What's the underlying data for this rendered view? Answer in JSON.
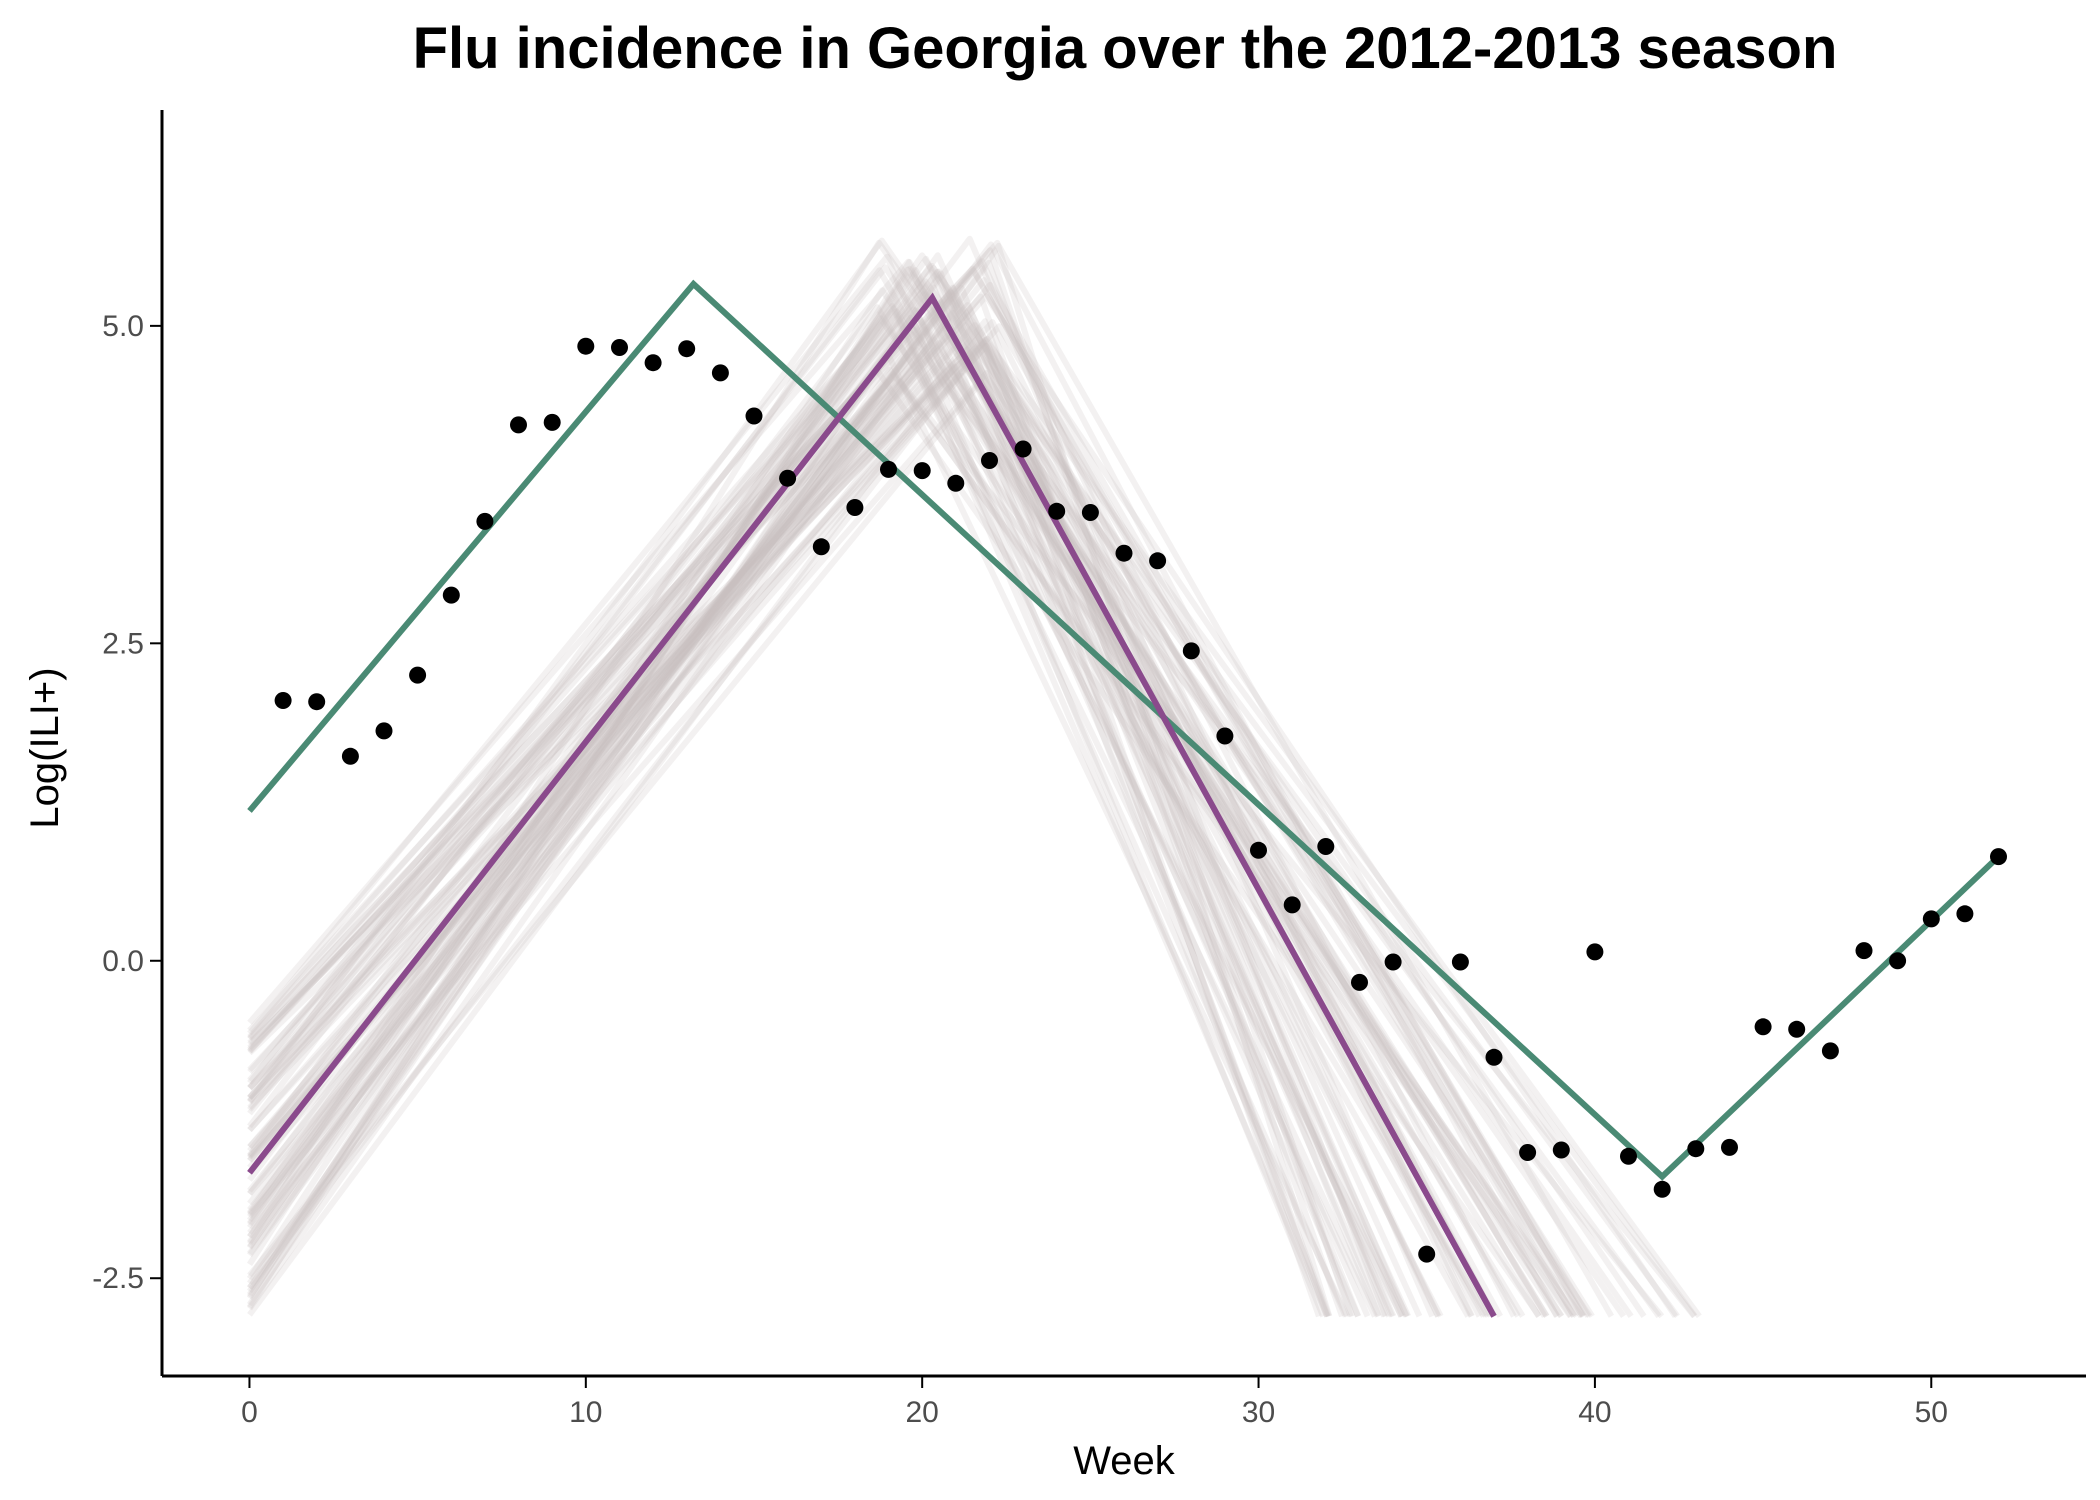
{
  "chart_data": {
    "type": "scatter",
    "title": "Flu incidence in Georgia over the 2012-2013 season",
    "xlabel": "Week",
    "ylabel": "Log(ILI+)",
    "xlim": [
      -2.6,
      54.6
    ],
    "ylim": [
      -3.27,
      6.7
    ],
    "x_ticks": [
      0,
      10,
      20,
      30,
      40,
      50
    ],
    "x_tick_labels": [
      "0",
      "10",
      "20",
      "30",
      "40",
      "50"
    ],
    "y_ticks": [
      -2.5,
      0,
      2.5,
      5
    ],
    "y_tick_labels": [
      "-2.5",
      "0.0",
      "2.5",
      "5.0"
    ],
    "grid": false,
    "legend": "none",
    "points": {
      "color": "#000000",
      "x": [
        1,
        2,
        3,
        4,
        5,
        6,
        7,
        8,
        9,
        10,
        11,
        12,
        13,
        14,
        15,
        16,
        17,
        18,
        19,
        20,
        21,
        22,
        23,
        24,
        25,
        26,
        27,
        28,
        29,
        30,
        31,
        32,
        33,
        34,
        35,
        36,
        37,
        38,
        39,
        40,
        41,
        42,
        43,
        44,
        45,
        46,
        47,
        48,
        49,
        50,
        51,
        52
      ],
      "y": [
        2.05,
        2.04,
        1.61,
        1.81,
        2.25,
        2.88,
        3.46,
        4.22,
        4.24,
        4.84,
        4.83,
        4.71,
        4.82,
        4.63,
        4.29,
        3.8,
        3.26,
        3.57,
        3.87,
        3.86,
        3.76,
        3.94,
        4.03,
        3.54,
        3.53,
        3.21,
        3.15,
        2.44,
        1.77,
        0.87,
        0.44,
        0.9,
        -0.17,
        -0.01,
        -2.31,
        -0.01,
        -0.76,
        -1.51,
        -1.49,
        0.07,
        -1.54,
        -1.8,
        -1.48,
        -1.47,
        -0.52,
        -0.54,
        -0.71,
        0.08,
        0.0,
        0.33,
        0.37,
        0.82
      ]
    },
    "lines": [
      {
        "color": "#4a8a74",
        "x": [
          0,
          13.2,
          42,
          52
        ],
        "y": [
          1.18,
          5.33,
          -1.7,
          0.82
        ]
      },
      {
        "color": "#8a4a8c",
        "x": [
          0,
          20.3,
          37
        ],
        "y": [
          -1.67,
          5.22,
          -2.8
        ]
      }
    ],
    "ensemble": {
      "color": "#c9bfbf",
      "count": 80,
      "peak_x_range": [
        18.6,
        22.3
      ],
      "peak_y_range": [
        4.55,
        5.7
      ],
      "start_y_range": [
        -2.8,
        -0.45
      ],
      "end_x_range": [
        31.5,
        43.2
      ],
      "end_y": -2.8
    }
  }
}
